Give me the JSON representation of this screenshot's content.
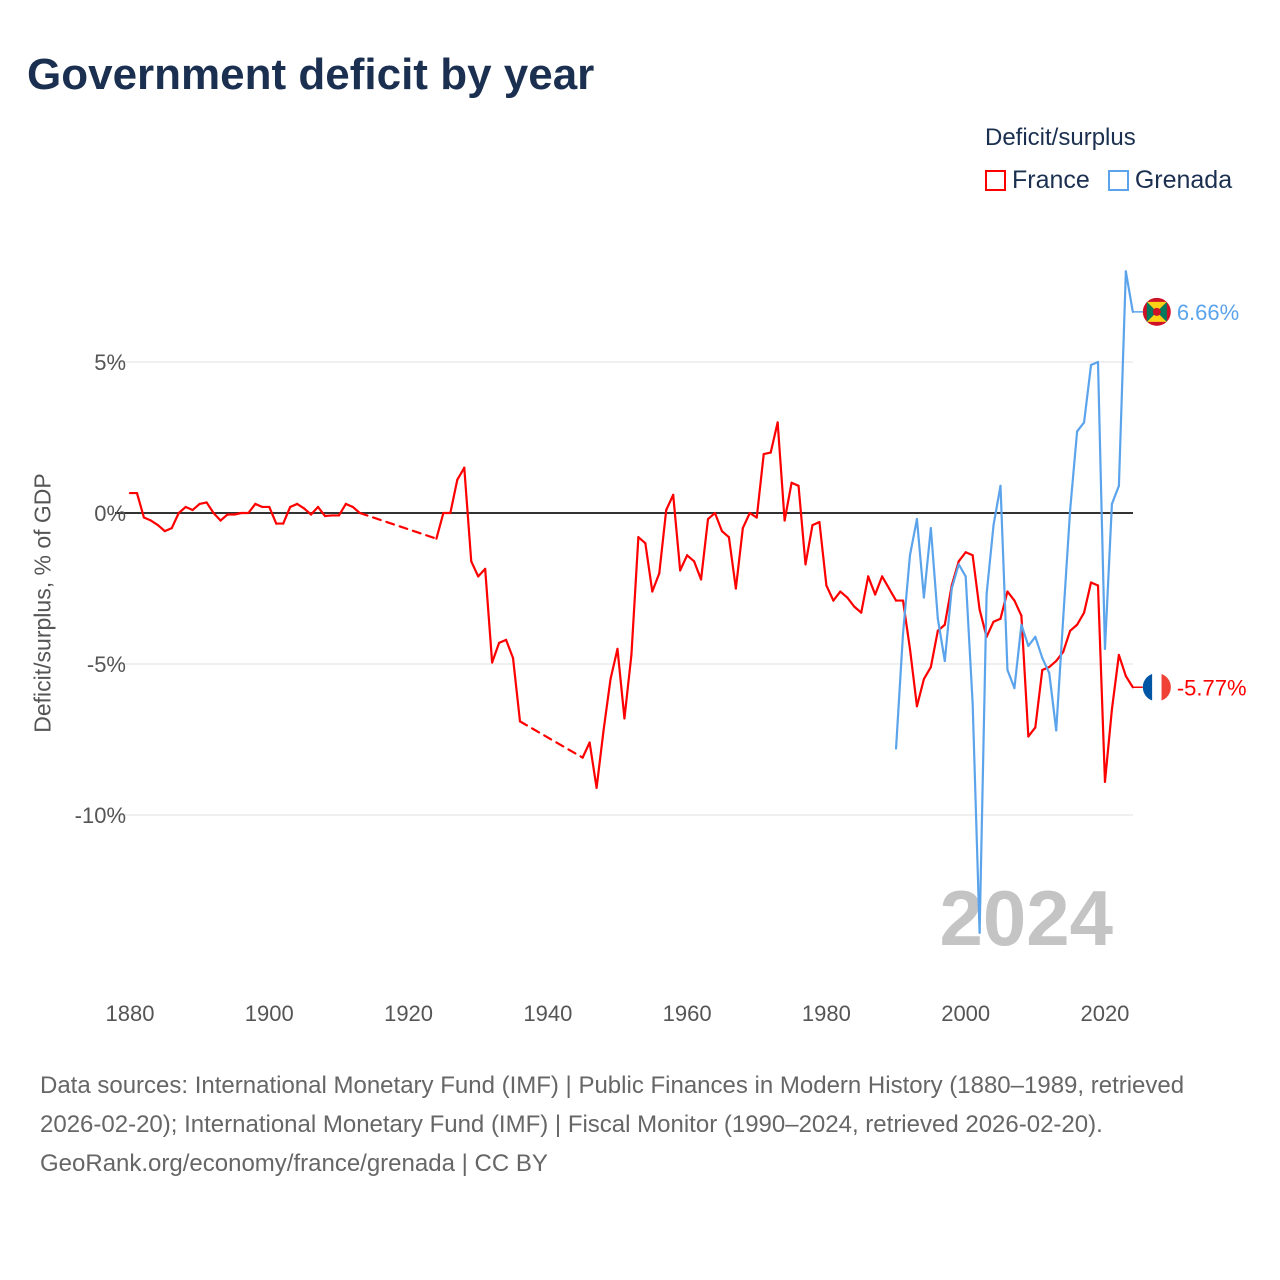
{
  "title": "Government deficit by year",
  "legend": {
    "title": "Deficit/surplus",
    "items": [
      {
        "label": "France",
        "color": "#ff0000"
      },
      {
        "label": "Grenada",
        "color": "#5ba4ec"
      }
    ]
  },
  "footer": {
    "sources": "Data sources: International Monetary Fund (IMF) | Public Finances in Modern History (1880–1989, retrieved 2026-02-20); International Monetary Fund (IMF) | Fiscal Monitor (1990–2024, retrieved 2026-02-20).",
    "credit": "GeoRank.org/economy/france/grenada | CC BY"
  },
  "chart_data": {
    "type": "line",
    "title": "Government deficit by year",
    "xlabel": "",
    "ylabel": "Deficit/surplus, % of GDP",
    "xlim": [
      1880,
      2024
    ],
    "ylim": [
      -14,
      8
    ],
    "x_ticks": [
      "1880",
      "1900",
      "1920",
      "1940",
      "1960",
      "1980",
      "2000",
      "2020"
    ],
    "y_ticks": [
      {
        "value": 5,
        "label": "5%"
      },
      {
        "value": 0,
        "label": "0%"
      },
      {
        "value": -5,
        "label": "-5%"
      },
      {
        "value": -10,
        "label": "-10%"
      }
    ],
    "year_watermark": "2024",
    "series": [
      {
        "name": "France",
        "color": "#ff0000",
        "end_label": "-5.77%",
        "points": [
          [
            1880,
            0.66
          ],
          [
            1881,
            0.66
          ],
          [
            1882,
            -0.15
          ],
          [
            1883,
            -0.25
          ],
          [
            1884,
            -0.4
          ],
          [
            1885,
            -0.6
          ],
          [
            1886,
            -0.5
          ],
          [
            1887,
            0
          ],
          [
            1888,
            0.2
          ],
          [
            1889,
            0.1
          ],
          [
            1890,
            0.3
          ],
          [
            1891,
            0.35
          ],
          [
            1892,
            0
          ],
          [
            1893,
            -0.25
          ],
          [
            1894,
            -0.05
          ],
          [
            1895,
            -0.05
          ],
          [
            1896,
            0
          ],
          [
            1897,
            0
          ],
          [
            1898,
            0.3
          ],
          [
            1899,
            0.2
          ],
          [
            1900,
            0.2
          ],
          [
            1901,
            -0.35
          ],
          [
            1902,
            -0.35
          ],
          [
            1903,
            0.2
          ],
          [
            1904,
            0.3
          ],
          [
            1905,
            0.15
          ],
          [
            1906,
            -0.05
          ],
          [
            1907,
            0.2
          ],
          [
            1908,
            -0.1
          ],
          [
            1909,
            -0.08
          ],
          [
            1910,
            -0.08
          ],
          [
            1911,
            0.3
          ],
          [
            1912,
            0.2
          ],
          [
            1913,
            0.0
          ],
          [
            1924,
            -0.85
          ],
          [
            1925,
            0.0
          ],
          [
            1926,
            0.0
          ],
          [
            1927,
            1.1
          ],
          [
            1928,
            1.5
          ],
          [
            1929,
            -1.6
          ],
          [
            1930,
            -2.1
          ],
          [
            1931,
            -1.85
          ],
          [
            1932,
            -4.95
          ],
          [
            1933,
            -4.3
          ],
          [
            1934,
            -4.2
          ],
          [
            1935,
            -4.8
          ],
          [
            1936,
            -6.9
          ],
          [
            1945,
            -8.1
          ],
          [
            1946,
            -7.6
          ],
          [
            1947,
            -9.1
          ],
          [
            1948,
            -7.2
          ],
          [
            1949,
            -5.5
          ],
          [
            1950,
            -4.5
          ],
          [
            1951,
            -6.8
          ],
          [
            1952,
            -4.7
          ],
          [
            1953,
            -0.8
          ],
          [
            1954,
            -1.0
          ],
          [
            1955,
            -2.6
          ],
          [
            1956,
            -2.0
          ],
          [
            1957,
            0.1
          ],
          [
            1958,
            0.6
          ],
          [
            1959,
            -1.9
          ],
          [
            1960,
            -1.4
          ],
          [
            1961,
            -1.6
          ],
          [
            1962,
            -2.2
          ],
          [
            1963,
            -0.2
          ],
          [
            1964,
            0
          ],
          [
            1965,
            -0.6
          ],
          [
            1966,
            -0.8
          ],
          [
            1967,
            -2.5
          ],
          [
            1968,
            -0.5
          ],
          [
            1969,
            0
          ],
          [
            1970,
            -0.15
          ],
          [
            1971,
            1.95
          ],
          [
            1972,
            2.0
          ],
          [
            1973,
            3.0
          ],
          [
            1974,
            -0.25
          ],
          [
            1975,
            1.0
          ],
          [
            1976,
            0.9
          ],
          [
            1977,
            -1.7
          ],
          [
            1978,
            -0.4
          ],
          [
            1979,
            -0.3
          ],
          [
            1980,
            -2.4
          ],
          [
            1981,
            -2.9
          ],
          [
            1982,
            -2.6
          ],
          [
            1983,
            -2.8
          ],
          [
            1984,
            -3.1
          ],
          [
            1985,
            -3.3
          ],
          [
            1986,
            -2.1
          ],
          [
            1987,
            -2.7
          ],
          [
            1988,
            -2.1
          ],
          [
            1989,
            -2.5
          ],
          [
            1990,
            -2.9
          ],
          [
            1991,
            -2.9
          ],
          [
            1992,
            -4.5
          ],
          [
            1993,
            -6.4
          ],
          [
            1994,
            -5.5
          ],
          [
            1995,
            -5.1
          ],
          [
            1996,
            -3.9
          ],
          [
            1997,
            -3.7
          ],
          [
            1998,
            -2.4
          ],
          [
            1999,
            -1.6
          ],
          [
            2000,
            -1.3
          ],
          [
            2001,
            -1.4
          ],
          [
            2002,
            -3.2
          ],
          [
            2003,
            -4.1
          ],
          [
            2004,
            -3.6
          ],
          [
            2005,
            -3.5
          ],
          [
            2006,
            -2.6
          ],
          [
            2007,
            -2.9
          ],
          [
            2008,
            -3.4
          ],
          [
            2009,
            -7.4
          ],
          [
            2010,
            -7.1
          ],
          [
            2011,
            -5.2
          ],
          [
            2012,
            -5.1
          ],
          [
            2013,
            -4.9
          ],
          [
            2014,
            -4.6
          ],
          [
            2015,
            -3.9
          ],
          [
            2016,
            -3.7
          ],
          [
            2017,
            -3.3
          ],
          [
            2018,
            -2.3
          ],
          [
            2019,
            -2.4
          ],
          [
            2020,
            -8.9
          ],
          [
            2021,
            -6.5
          ],
          [
            2022,
            -4.7
          ],
          [
            2023,
            -5.4
          ],
          [
            2024,
            -5.77
          ]
        ]
      },
      {
        "name": "Grenada",
        "color": "#5ba4ec",
        "end_label": "6.66%",
        "points": [
          [
            1990,
            -7.8
          ],
          [
            1991,
            -4.0
          ],
          [
            1992,
            -1.4
          ],
          [
            1993,
            -0.2
          ],
          [
            1994,
            -2.8
          ],
          [
            1995,
            -0.5
          ],
          [
            1996,
            -3.5
          ],
          [
            1997,
            -4.9
          ],
          [
            1998,
            -2.5
          ],
          [
            1999,
            -1.7
          ],
          [
            2000,
            -2.1
          ],
          [
            2001,
            -6.3
          ],
          [
            2002,
            -13.9
          ],
          [
            2003,
            -2.7
          ],
          [
            2004,
            -0.4
          ],
          [
            2005,
            0.9
          ],
          [
            2006,
            -5.2
          ],
          [
            2007,
            -5.8
          ],
          [
            2008,
            -3.7
          ],
          [
            2009,
            -4.4
          ],
          [
            2010,
            -4.1
          ],
          [
            2011,
            -4.8
          ],
          [
            2012,
            -5.3
          ],
          [
            2013,
            -7.2
          ],
          [
            2014,
            -3.5
          ],
          [
            2015,
            0.1
          ],
          [
            2016,
            2.7
          ],
          [
            2017,
            3.0
          ],
          [
            2018,
            4.9
          ],
          [
            2019,
            5.0
          ],
          [
            2020,
            -4.5
          ],
          [
            2021,
            0.3
          ],
          [
            2022,
            0.9
          ],
          [
            2023,
            8.0
          ],
          [
            2024,
            6.66
          ]
        ]
      }
    ]
  }
}
